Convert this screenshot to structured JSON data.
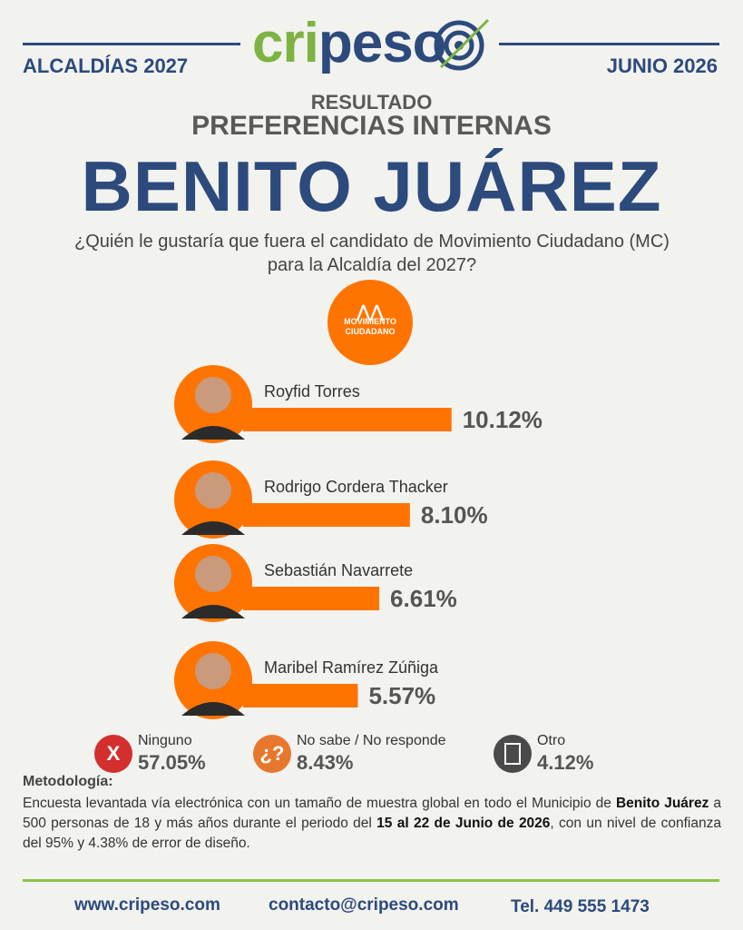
{
  "header": {
    "brand_a": "cri",
    "brand_b": "peso",
    "left": "ALCALDÍAS 2027",
    "right": "JUNIO 2026"
  },
  "title": {
    "kicker": "RESULTADO",
    "subtitle": "PREFERENCIAS INTERNAS",
    "main": "BENITO JUÁREZ",
    "question": "¿Quién le gustaría que fuera el candidato de Movimiento Ciudadano (MC) para la Alcaldía del 2027?"
  },
  "logo": {
    "line1": "MOVIMIENTO",
    "line2": "CIUDADANO"
  },
  "chart_data": {
    "type": "bar",
    "orientation": "horizontal",
    "categories": [
      "Royfid Torres",
      "Rodrigo Cordera Thacker",
      "Sebastián Navarrete",
      "Maribel Ramírez Zúñiga"
    ],
    "values": [
      10.12,
      8.1,
      6.61,
      5.57
    ],
    "value_labels": [
      "10.12%",
      "8.10%",
      "6.61%",
      "5.57%"
    ],
    "color": "#ff7400"
  },
  "others": [
    {
      "label": "Ninguno",
      "value": "57.05%",
      "icon": "X"
    },
    {
      "label": "No sabe / No responde",
      "value": "8.43%",
      "icon": "¿?"
    },
    {
      "label": "Otro",
      "value": "4.12%"
    }
  ],
  "methodology": {
    "heading": "Metodología:",
    "text": [
      "Encuesta levantada vía electrónica con un tamaño de muestra global en todo el Municipio de ",
      "Benito Juárez",
      " a 500 personas de 18 y más años durante el periodo del ",
      "15 al 22 de Junio de 2026",
      ", con un nivel de confianza del 95% y 4.38% de error de diseño."
    ]
  },
  "footer": {
    "web": "www.cripeso.com",
    "email": "contacto@cripeso.com",
    "phone": "Tel. 449 555 1473"
  }
}
